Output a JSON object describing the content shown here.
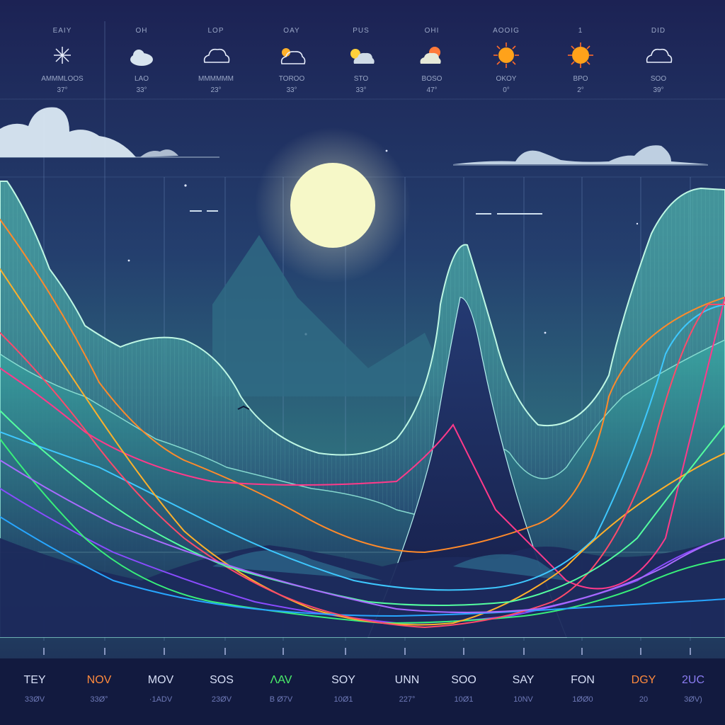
{
  "forecast": [
    {
      "label": "EAIY",
      "condition": "AMMMLOOS",
      "temp": "37°",
      "icon": "sparkle-sun-icon"
    },
    {
      "label": "OH",
      "condition": "LAO",
      "temp": "33°",
      "icon": "sun-cloud-icon"
    },
    {
      "label": "LOP",
      "condition": "MMMMMM",
      "temp": "23°",
      "icon": "cloud-icon"
    },
    {
      "label": "OAY",
      "condition": "TOROO",
      "temp": "33°",
      "icon": "sun-cloud-icon"
    },
    {
      "label": "PUS",
      "condition": "STO",
      "temp": "33°",
      "icon": "sun-cloud-icon"
    },
    {
      "label": "OHI",
      "condition": "BOSO",
      "temp": "47°",
      "icon": "sun-cloud-icon"
    },
    {
      "label": "AOOIG",
      "condition": "OKOY",
      "temp": "0°",
      "icon": "sun-icon"
    },
    {
      "label": "1",
      "condition": "BPO",
      "temp": "2°",
      "icon": "sun-icon"
    },
    {
      "label": "DID",
      "condition": "SOO",
      "temp": "39°",
      "icon": "cloud-icon"
    }
  ],
  "months": [
    {
      "label": "TEY",
      "sub": "33ØV",
      "color": "#d7dff7"
    },
    {
      "label": "NOV",
      "sub": "33Ø°",
      "color": "#ff8a3d"
    },
    {
      "label": "MOV",
      "sub": "·1ADV",
      "color": "#d7dff7"
    },
    {
      "label": "SOS",
      "sub": "23ØV",
      "color": "#d7dff7"
    },
    {
      "label": "ΛAV",
      "sub": "B Ø7V",
      "color": "#4bf06a"
    },
    {
      "label": "SOY",
      "sub": "10Ø1",
      "color": "#d7dff7"
    },
    {
      "label": "UNN",
      "sub": "227°",
      "color": "#d7dff7"
    },
    {
      "label": "SOO",
      "sub": "10Ø1",
      "color": "#d7dff7"
    },
    {
      "label": "SAY",
      "sub": "10NV",
      "color": "#d7dff7"
    },
    {
      "label": "FON",
      "sub": "1ØØ0",
      "color": "#d7dff7"
    },
    {
      "label": "DGY",
      "sub": "20",
      "color": "#ff8a3d"
    },
    {
      "label": "2UC",
      "sub": "3ØV)",
      "color": "#8b7cf2"
    }
  ],
  "colors": {
    "sky_top": "#1d2456",
    "sky_mid": "#2a5b78",
    "moon": "#f6f8c8",
    "mountain": "#46c6b0",
    "line_colors": [
      "#ff8a2a",
      "#ff3a8a",
      "#3ec8ff",
      "#8a4bff",
      "#38f07a",
      "#ffb02a",
      "#27a6ff",
      "#ff4a6a",
      "#54ffa0",
      "#a96bff"
    ]
  }
}
